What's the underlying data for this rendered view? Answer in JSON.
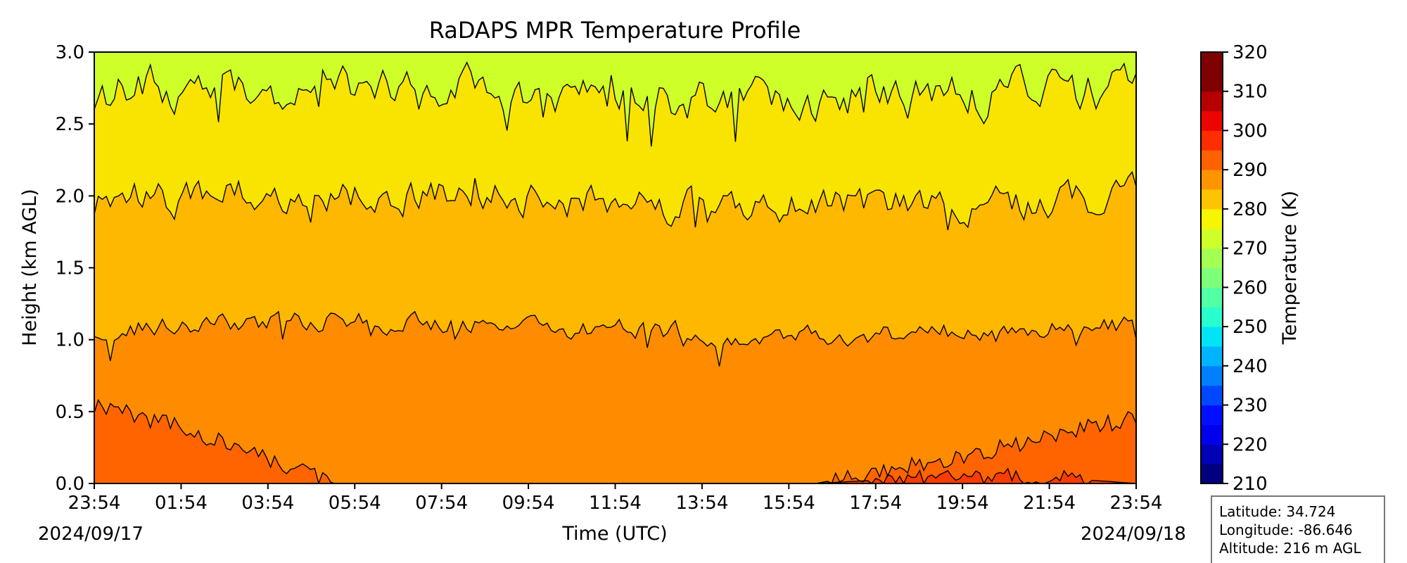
{
  "chart_data": {
    "type": "heatmap",
    "title": "RaDAPS MPR Temperature Profile",
    "xlabel": "Time (UTC)",
    "ylabel": "Height (km AGL)",
    "x_ticks": [
      "23:54",
      "01:54",
      "03:54",
      "05:54",
      "07:54",
      "09:54",
      "11:54",
      "13:54",
      "15:54",
      "17:54",
      "19:54",
      "21:54",
      "23:54"
    ],
    "x_range_hours": [
      0,
      24
    ],
    "start_date": "2024/09/17",
    "end_date": "2024/09/18",
    "y_ticks": [
      "0.0",
      "0.5",
      "1.0",
      "1.5",
      "2.0",
      "2.5",
      "3.0"
    ],
    "ylim": [
      0,
      3
    ],
    "colorbar": {
      "label": "Temperature (K)",
      "range": [
        210,
        320
      ],
      "tick_labels": [
        "210",
        "220",
        "230",
        "240",
        "250",
        "260",
        "270",
        "280",
        "290",
        "300",
        "310",
        "320"
      ],
      "level_step": 5,
      "colors": [
        "#00007f",
        "#0000b6",
        "#0000ed",
        "#0010ff",
        "#0048ff",
        "#0080ff",
        "#00b4ff",
        "#00e4f8",
        "#29ffce",
        "#53ffa4",
        "#7dff7a",
        "#a4ff53",
        "#ceff29",
        "#f8f500",
        "#ffc400",
        "#ff9400",
        "#ff6000",
        "#ff2d00",
        "#ed0400",
        "#b60000",
        "#7f0000",
        "#7f0000"
      ]
    },
    "bands": [
      {
        "range": "270-275 K",
        "color": "#ceff29"
      },
      {
        "range": "275-280 K",
        "color": "#f8e400"
      },
      {
        "range": "280-285 K",
        "color": "#ffb800"
      },
      {
        "range": "285-290 K",
        "color": "#ff8c00"
      },
      {
        "range": "290-295 K",
        "color": "#ff6400"
      },
      {
        "range": "295-300 K",
        "color": "#ff3c00"
      }
    ],
    "contours": [
      {
        "level_K": 275,
        "mean_height_km": 2.72,
        "variability_km": 0.12
      },
      {
        "level_K": 280,
        "mean_height_km": 1.97,
        "variability_km": 0.1
      },
      {
        "level_K": 285,
        "mean_height_km": 1.08,
        "variability_km": 0.06
      },
      {
        "level_K": 290,
        "height_km": [
          0.55,
          0.4,
          0.2,
          0.0,
          0.0,
          0.0,
          0.0,
          0.0,
          0.0,
          0.0,
          0.1,
          0.2,
          0.35,
          0.45
        ]
      },
      {
        "level_K": 295,
        "height_km": [
          0.0,
          0.0,
          0.0,
          0.0,
          0.0,
          0.0,
          0.0,
          0.0,
          0.0,
          0.0,
          0.03,
          0.05,
          0.04,
          0.0
        ]
      }
    ]
  },
  "station_info": {
    "latitude": "Latitude: 34.724",
    "longitude": "Longitude: -86.646",
    "altitude": "Altitude: 216 m AGL"
  }
}
